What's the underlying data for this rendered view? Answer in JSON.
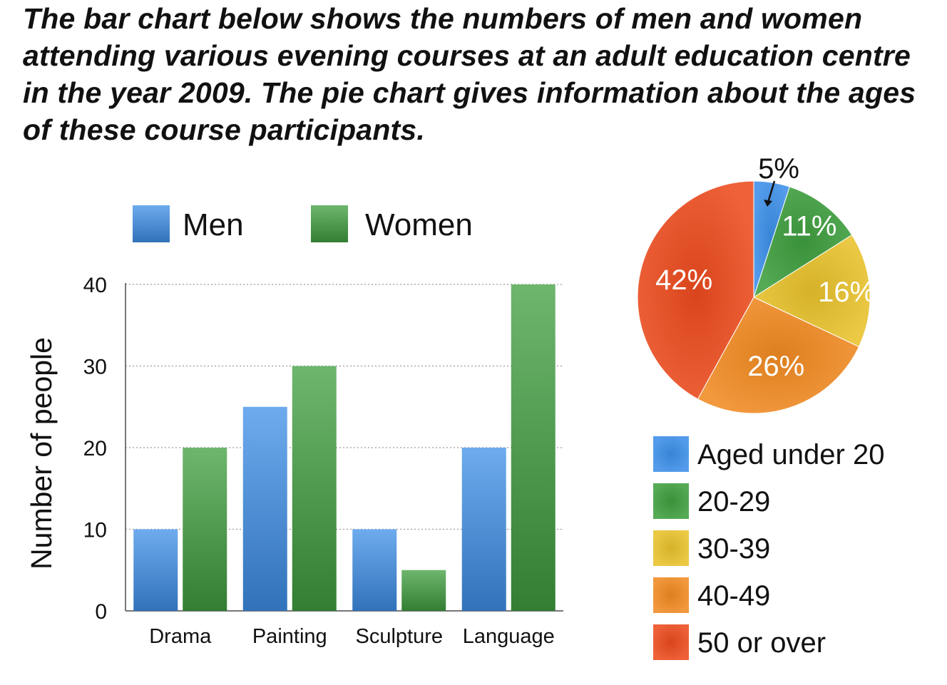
{
  "prompt": "The bar chart below shows the numbers of men and women attending various evening courses at an adult education centre in the year 2009. The pie chart gives information about the ages of these course participants.",
  "chart_data": [
    {
      "type": "bar",
      "title": "",
      "xlabel": "",
      "ylabel": "Number of people",
      "ylim": [
        0,
        40
      ],
      "yticks": [
        0,
        10,
        20,
        30,
        40
      ],
      "grid": true,
      "legend_position": "top",
      "categories": [
        "Drama",
        "Painting",
        "Sculpture",
        "Language"
      ],
      "series": [
        {
          "name": "Men",
          "values": [
            10,
            25,
            10,
            20
          ],
          "color": "#3d8fe8"
        },
        {
          "name": "Women",
          "values": [
            20,
            30,
            5,
            40
          ],
          "color": "#3e9e3e"
        }
      ]
    },
    {
      "type": "pie",
      "title": "",
      "legend_position": "bottom",
      "slices": [
        {
          "label": "Aged under 20",
          "value": 5,
          "display": "5%",
          "color": "#3d8fe8"
        },
        {
          "label": "20-29",
          "value": 11,
          "display": "11%",
          "color": "#3e9e3e"
        },
        {
          "label": "30-39",
          "value": 16,
          "display": "16%",
          "color": "#e8c22c"
        },
        {
          "label": "40-49",
          "value": 26,
          "display": "26%",
          "color": "#f08a22"
        },
        {
          "label": "50 or over",
          "value": 42,
          "display": "42%",
          "color": "#ec4b1e"
        }
      ]
    }
  ]
}
